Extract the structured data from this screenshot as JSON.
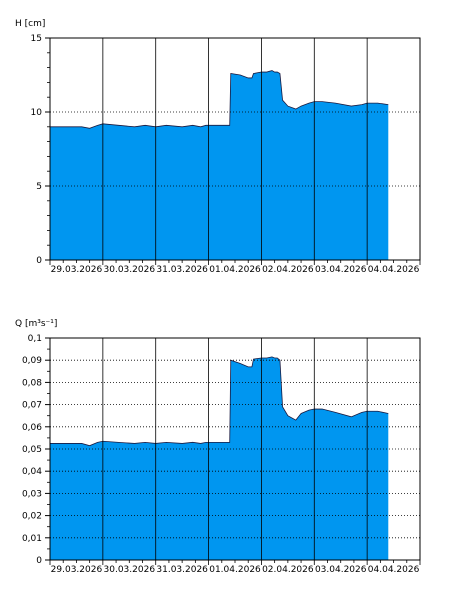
{
  "chart_data": [
    {
      "type": "area",
      "ylabel": "H [cm]",
      "xlabel": "",
      "ylim": [
        0,
        15
      ],
      "y_ticks": [
        0,
        5,
        10,
        15
      ],
      "x_ticks": [
        "29.03.2026",
        "30.03.2026",
        "31.03.2026",
        "01.04.2026",
        "02.04.2026",
        "03.04.2026",
        "04.04.2026"
      ],
      "grid": "dotted horizontal, solid vertical at day boundaries",
      "fill_color": "#0096f0",
      "series": [
        {
          "x": [
            0,
            0.3,
            0.6,
            0.75,
            0.9,
            1.0,
            1.3,
            1.6,
            1.8,
            2.0,
            2.2,
            2.5,
            2.7,
            2.85,
            2.95,
            3.2,
            3.4,
            3.42,
            3.6,
            3.75,
            3.82,
            3.85,
            4.0,
            4.1,
            4.2,
            4.25,
            4.3,
            4.35,
            4.4,
            4.5,
            4.65,
            4.75,
            4.9,
            5.0,
            5.15,
            5.4,
            5.7,
            5.9,
            6.0,
            6.2,
            6.4
          ],
          "y": [
            9.0,
            9.0,
            9.0,
            8.9,
            9.1,
            9.2,
            9.1,
            9.0,
            9.1,
            9.0,
            9.1,
            9.0,
            9.1,
            9.0,
            9.1,
            9.1,
            9.1,
            12.6,
            12.5,
            12.3,
            12.3,
            12.6,
            12.7,
            12.7,
            12.8,
            12.7,
            12.7,
            12.6,
            10.8,
            10.4,
            10.2,
            10.4,
            10.6,
            10.7,
            10.7,
            10.6,
            10.4,
            10.5,
            10.6,
            10.6,
            10.5
          ]
        }
      ]
    },
    {
      "type": "area",
      "ylabel": "Q [m³s⁻¹]",
      "xlabel": "",
      "ylim": [
        0,
        0.1
      ],
      "y_ticks": [
        "0",
        "0,01",
        "0,02",
        "0,03",
        "0,04",
        "0,05",
        "0,06",
        "0,07",
        "0,08",
        "0,09",
        "0,1"
      ],
      "x_ticks": [
        "29.03.2026",
        "30.03.2026",
        "31.03.2026",
        "01.04.2026",
        "02.04.2026",
        "03.04.2026",
        "04.04.2026"
      ],
      "grid": "dotted horizontal, solid vertical at day boundaries",
      "fill_color": "#0096f0",
      "series": [
        {
          "x": [
            0,
            0.3,
            0.6,
            0.75,
            0.9,
            1.0,
            1.3,
            1.6,
            1.8,
            2.0,
            2.2,
            2.5,
            2.7,
            2.85,
            2.95,
            3.2,
            3.4,
            3.42,
            3.6,
            3.75,
            3.82,
            3.85,
            4.0,
            4.1,
            4.2,
            4.25,
            4.3,
            4.35,
            4.4,
            4.5,
            4.65,
            4.75,
            4.9,
            5.0,
            5.15,
            5.4,
            5.7,
            5.9,
            6.0,
            6.2,
            6.4
          ],
          "y": [
            0.0525,
            0.0525,
            0.0525,
            0.0515,
            0.053,
            0.0535,
            0.053,
            0.0525,
            0.053,
            0.0525,
            0.053,
            0.0525,
            0.053,
            0.0525,
            0.053,
            0.053,
            0.053,
            0.09,
            0.0885,
            0.087,
            0.087,
            0.0905,
            0.091,
            0.091,
            0.0915,
            0.091,
            0.091,
            0.09,
            0.069,
            0.065,
            0.063,
            0.066,
            0.0675,
            0.068,
            0.068,
            0.0665,
            0.0645,
            0.0665,
            0.067,
            0.067,
            0.066
          ]
        }
      ]
    }
  ]
}
